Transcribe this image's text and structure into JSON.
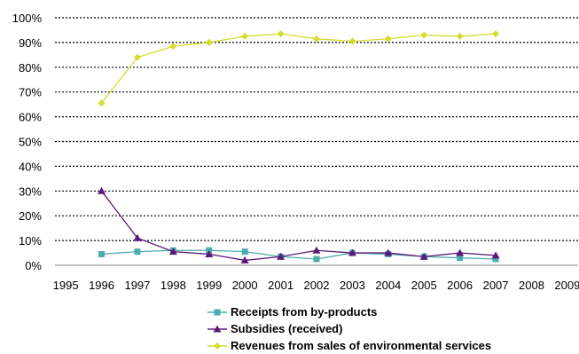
{
  "chart_data": {
    "type": "line",
    "categories": [
      "1995",
      "1996",
      "1997",
      "1998",
      "1999",
      "2000",
      "2001",
      "2002",
      "2003",
      "2004",
      "2005",
      "2006",
      "2007",
      "2008",
      "2009"
    ],
    "ylim": [
      0,
      100
    ],
    "yticks": [
      "0%",
      "10%",
      "20%",
      "30%",
      "40%",
      "50%",
      "60%",
      "70%",
      "80%",
      "90%",
      "100%"
    ],
    "grid": "dotted horizontal",
    "legend_position": "bottom",
    "series": [
      {
        "name": "Receipts from by-products",
        "color": "#4BACAC",
        "marker": "square",
        "values": [
          null,
          4.5,
          5.5,
          6,
          6,
          5.5,
          3.5,
          2.5,
          5,
          4.5,
          3.5,
          3,
          2.5,
          null,
          null
        ]
      },
      {
        "name": "Subsidies (received)",
        "color": "#5B1A78",
        "marker": "triangle",
        "values": [
          null,
          30,
          11,
          5.5,
          4.5,
          2,
          3.5,
          6,
          5,
          5,
          3.5,
          5,
          4,
          null,
          null
        ]
      },
      {
        "name": "Revenues from sales of environmental services",
        "color": "#D4DC2C",
        "marker": "diamond",
        "values": [
          null,
          65.5,
          84,
          88.5,
          90,
          92.5,
          93.5,
          91.5,
          90.5,
          91.5,
          93,
          92.5,
          93.5,
          null,
          null
        ]
      }
    ]
  }
}
